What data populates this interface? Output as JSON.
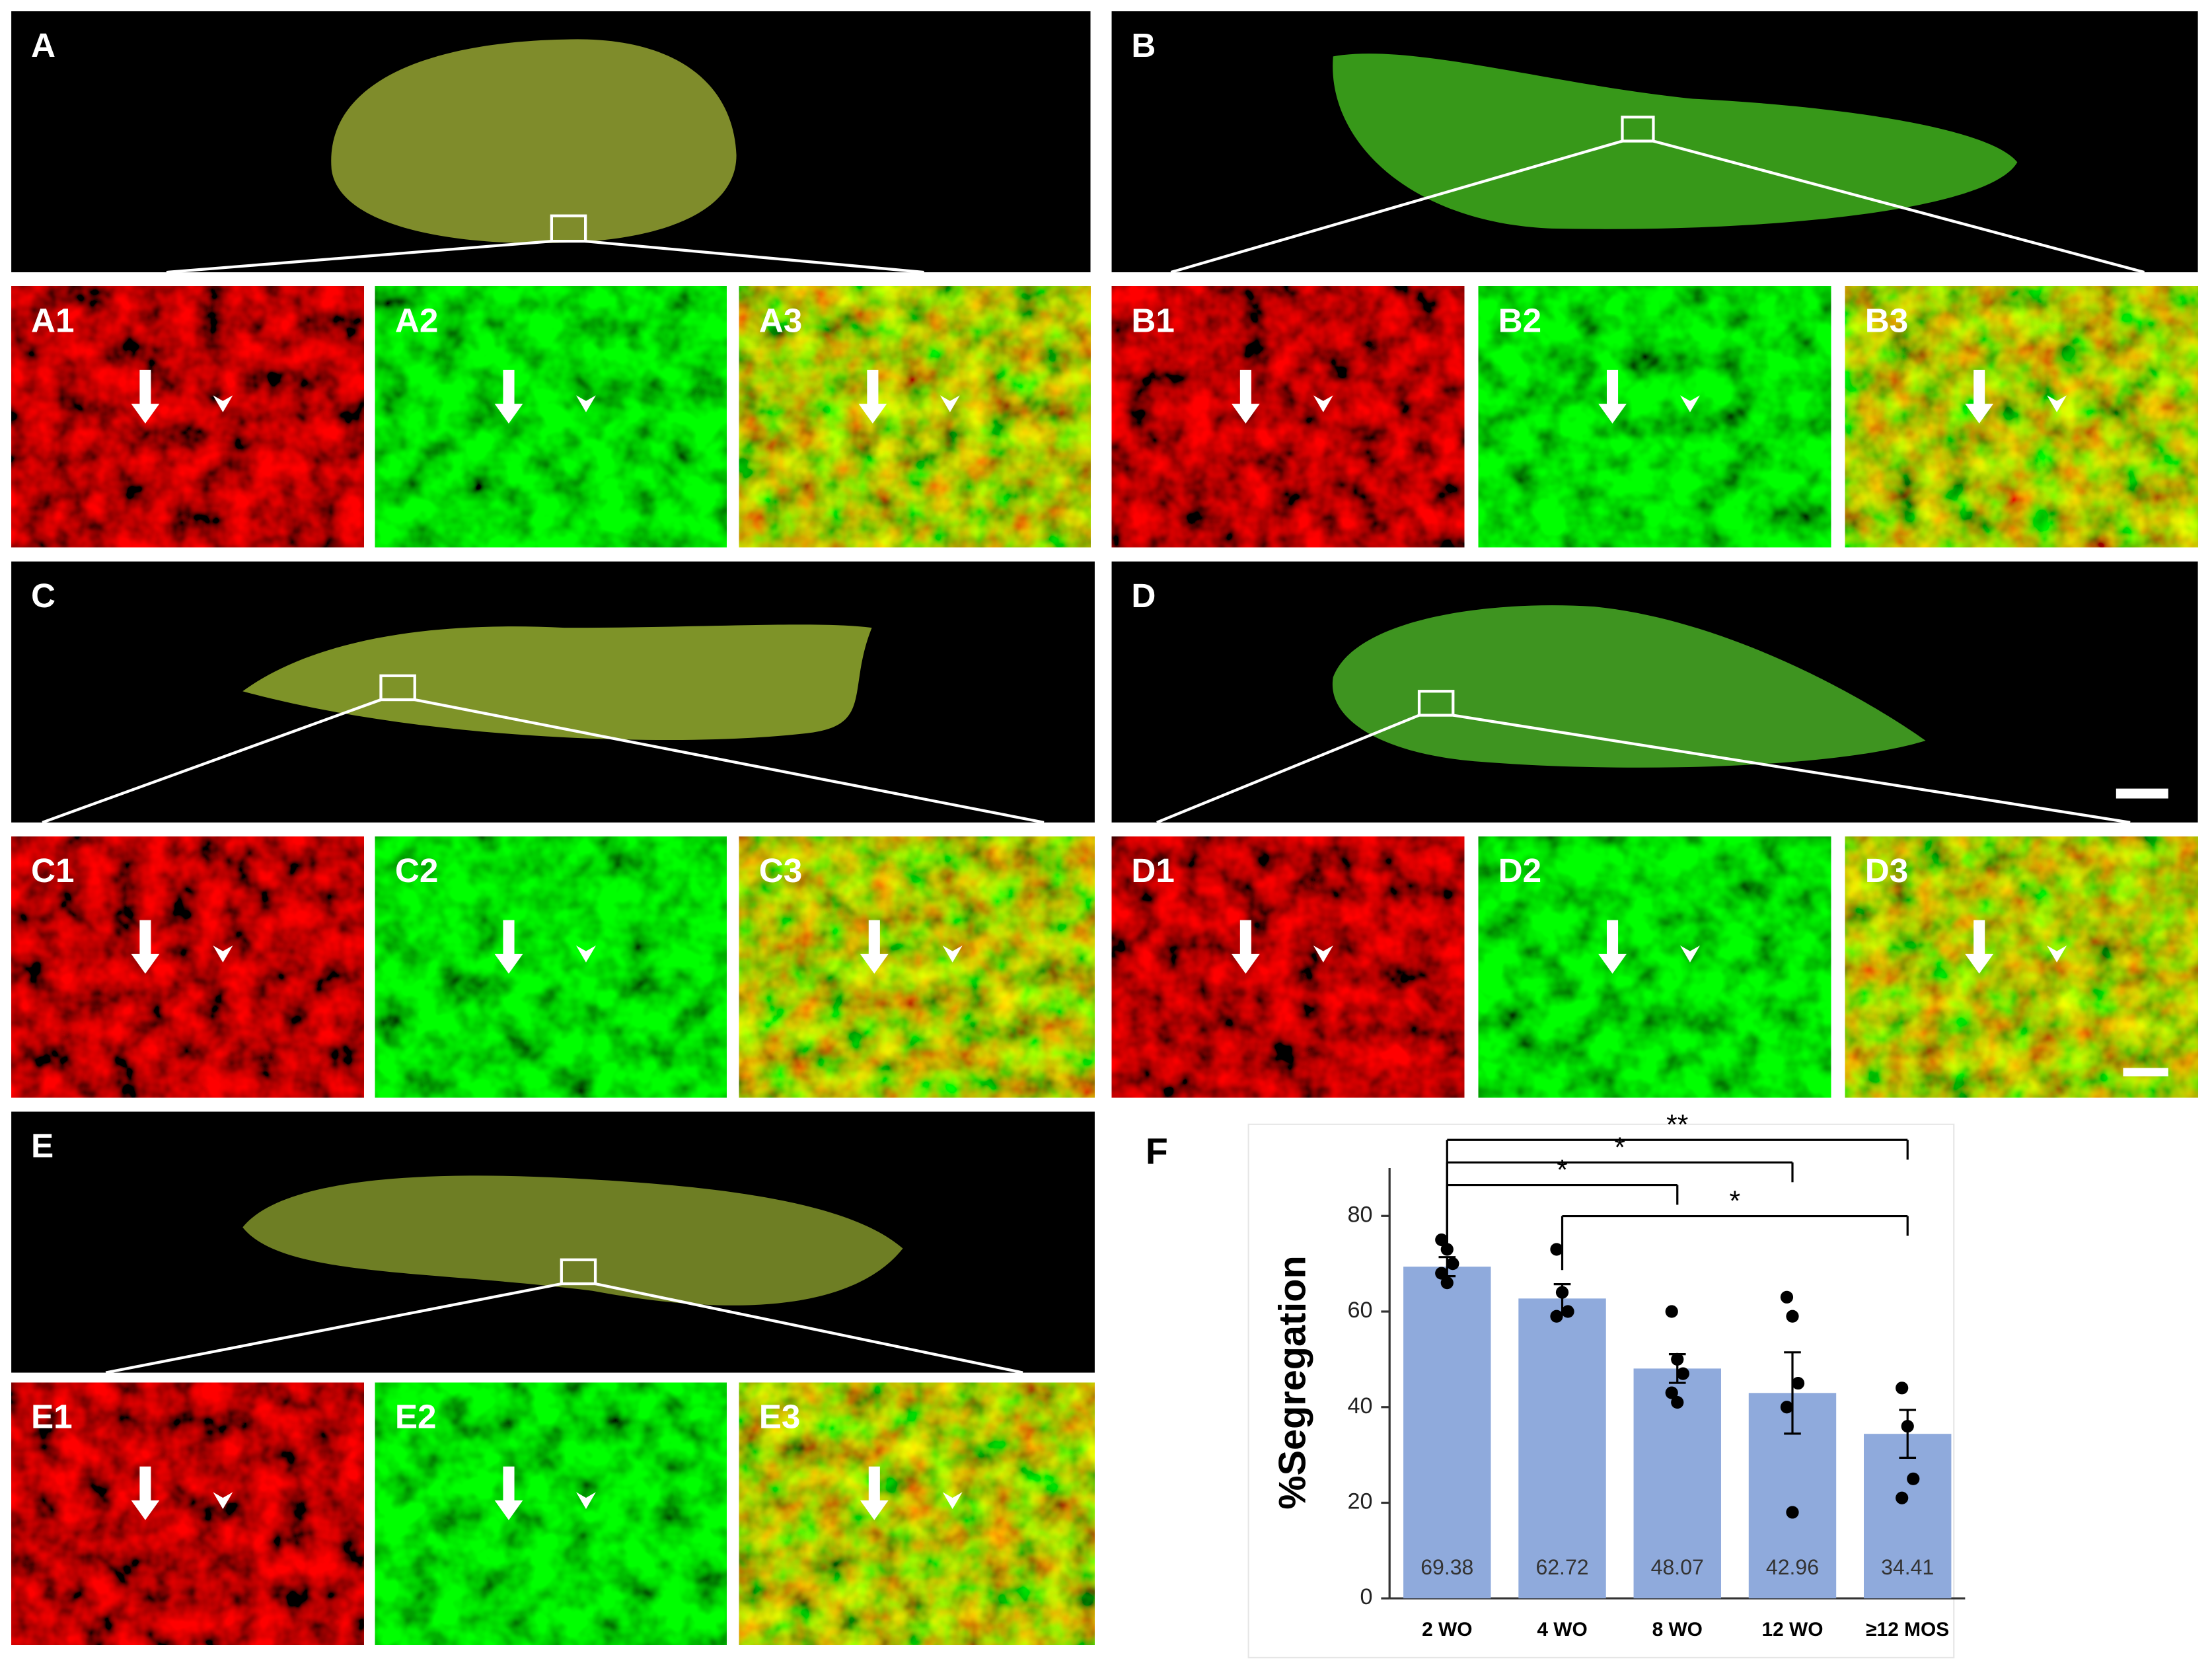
{
  "panels": [
    "A",
    "B",
    "A1",
    "A2",
    "A3",
    "B1",
    "B2",
    "B3",
    "C",
    "D",
    "C1",
    "C2",
    "C3",
    "D1",
    "D2",
    "D3",
    "E",
    "E1",
    "E2",
    "E3",
    "F"
  ],
  "chart_data": {
    "type": "bar",
    "y_label": "%Segregation",
    "categories": [
      "2 WO",
      "4 WO",
      "8 WO",
      "12 WO",
      "≥12 MOS"
    ],
    "values": [
      69.38,
      62.72,
      48.07,
      42.96,
      34.41
    ],
    "errors": [
      2,
      3,
      3,
      8.5,
      5
    ],
    "points": [
      [
        75,
        73,
        70,
        68,
        66
      ],
      [
        73,
        64,
        60,
        59
      ],
      [
        60,
        50,
        47,
        43,
        41
      ],
      [
        63,
        59,
        45,
        40,
        18
      ],
      [
        44,
        36,
        25,
        21
      ]
    ],
    "color": "#8faadc",
    "ylim": [
      0,
      90
    ],
    "yticks": [
      0,
      20,
      40,
      60,
      80
    ],
    "comparisons": [
      {
        "pair": [
          0,
          4
        ],
        "label": "**"
      },
      {
        "pair": [
          0,
          3
        ],
        "label": "*"
      },
      {
        "pair": [
          0,
          2
        ],
        "label": "*"
      },
      {
        "pair": [
          1,
          4
        ],
        "label": "*"
      }
    ]
  }
}
